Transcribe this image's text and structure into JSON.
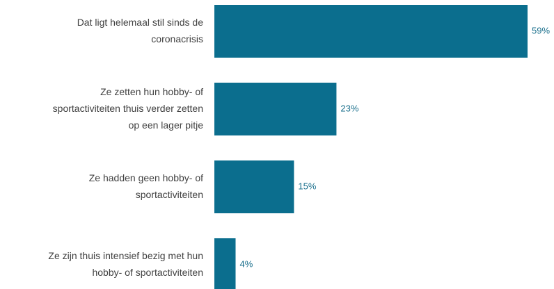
{
  "chart_data": {
    "type": "bar",
    "orientation": "horizontal",
    "categories": [
      "Dat ligt helemaal stil sinds de\ncoronacrisis",
      "Ze zetten hun hobby- of\nsportactiviteiten thuis verder zetten\nop een lager pitje",
      "Ze hadden geen hobby- of\nsportactiviteiten",
      "Ze zijn thuis intensief bezig met hun\nhobby- of sportactiviteiten"
    ],
    "values": [
      59,
      23,
      15,
      4
    ],
    "value_labels": [
      "59%",
      "23%",
      "15%",
      "4%"
    ],
    "color": "#0b6e8e"
  }
}
